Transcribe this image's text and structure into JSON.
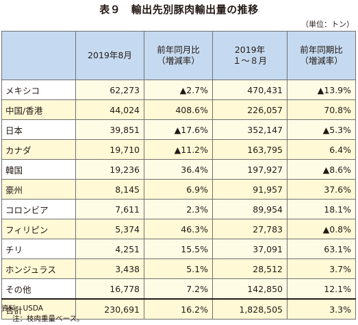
{
  "title": "表９　輸出先別豚肉輸出量の推移",
  "unit": "（単位：トン）",
  "headers": {
    "col1": "2019年8月",
    "col2_line1": "前年同月比",
    "col2_line2": "（増減率）",
    "col3_line1": "2019年",
    "col3_line2": "１～８月",
    "col4_line1": "前年同期比",
    "col4_line2": "（増減率）"
  },
  "rows": [
    {
      "name": "メキシコ",
      "aug": "62,273",
      "yoy_m": "▲2.7%",
      "ytd": "470,431",
      "yoy_p": "▲13.9%"
    },
    {
      "name": "中国/香港",
      "aug": "44,024",
      "yoy_m": "408.6%",
      "ytd": "226,057",
      "yoy_p": "70.8%"
    },
    {
      "name": "日本",
      "aug": "39,851",
      "yoy_m": "▲17.6%",
      "ytd": "352,147",
      "yoy_p": "▲5.3%"
    },
    {
      "name": "カナダ",
      "aug": "19,710",
      "yoy_m": "▲11.2%",
      "ytd": "163,795",
      "yoy_p": "6.4%"
    },
    {
      "name": "韓国",
      "aug": "19,236",
      "yoy_m": "36.4%",
      "ytd": "197,927",
      "yoy_p": "▲8.6%"
    },
    {
      "name": "豪州",
      "aug": "8,145",
      "yoy_m": "6.9%",
      "ytd": "91,957",
      "yoy_p": "37.6%"
    },
    {
      "name": "コロンビア",
      "aug": "7,611",
      "yoy_m": "2.3%",
      "ytd": "89,954",
      "yoy_p": "18.1%"
    },
    {
      "name": "フィリピン",
      "aug": "5,374",
      "yoy_m": "46.3%",
      "ytd": "27,783",
      "yoy_p": "▲0.8%"
    },
    {
      "name": "チリ",
      "aug": "4,251",
      "yoy_m": "15.5%",
      "ytd": "37,091",
      "yoy_p": "63.1%"
    },
    {
      "name": "ホンジュラス",
      "aug": "3,438",
      "yoy_m": "5.1%",
      "ytd": "28,512",
      "yoy_p": "3.7%"
    },
    {
      "name": "その他",
      "aug": "16,778",
      "yoy_m": "7.2%",
      "ytd": "142,850",
      "yoy_p": "12.1%"
    }
  ],
  "total": {
    "name": "合計",
    "aug": "230,691",
    "yoy_m": "16.2%",
    "ytd": "1,828,505",
    "yoy_p": "3.3%"
  },
  "notes": {
    "source": "資料：USDA",
    "note": "注：枝肉重量ベース。"
  },
  "colors": {
    "header_bg": "#c5daf0",
    "row_tint": "#fff9d6"
  }
}
